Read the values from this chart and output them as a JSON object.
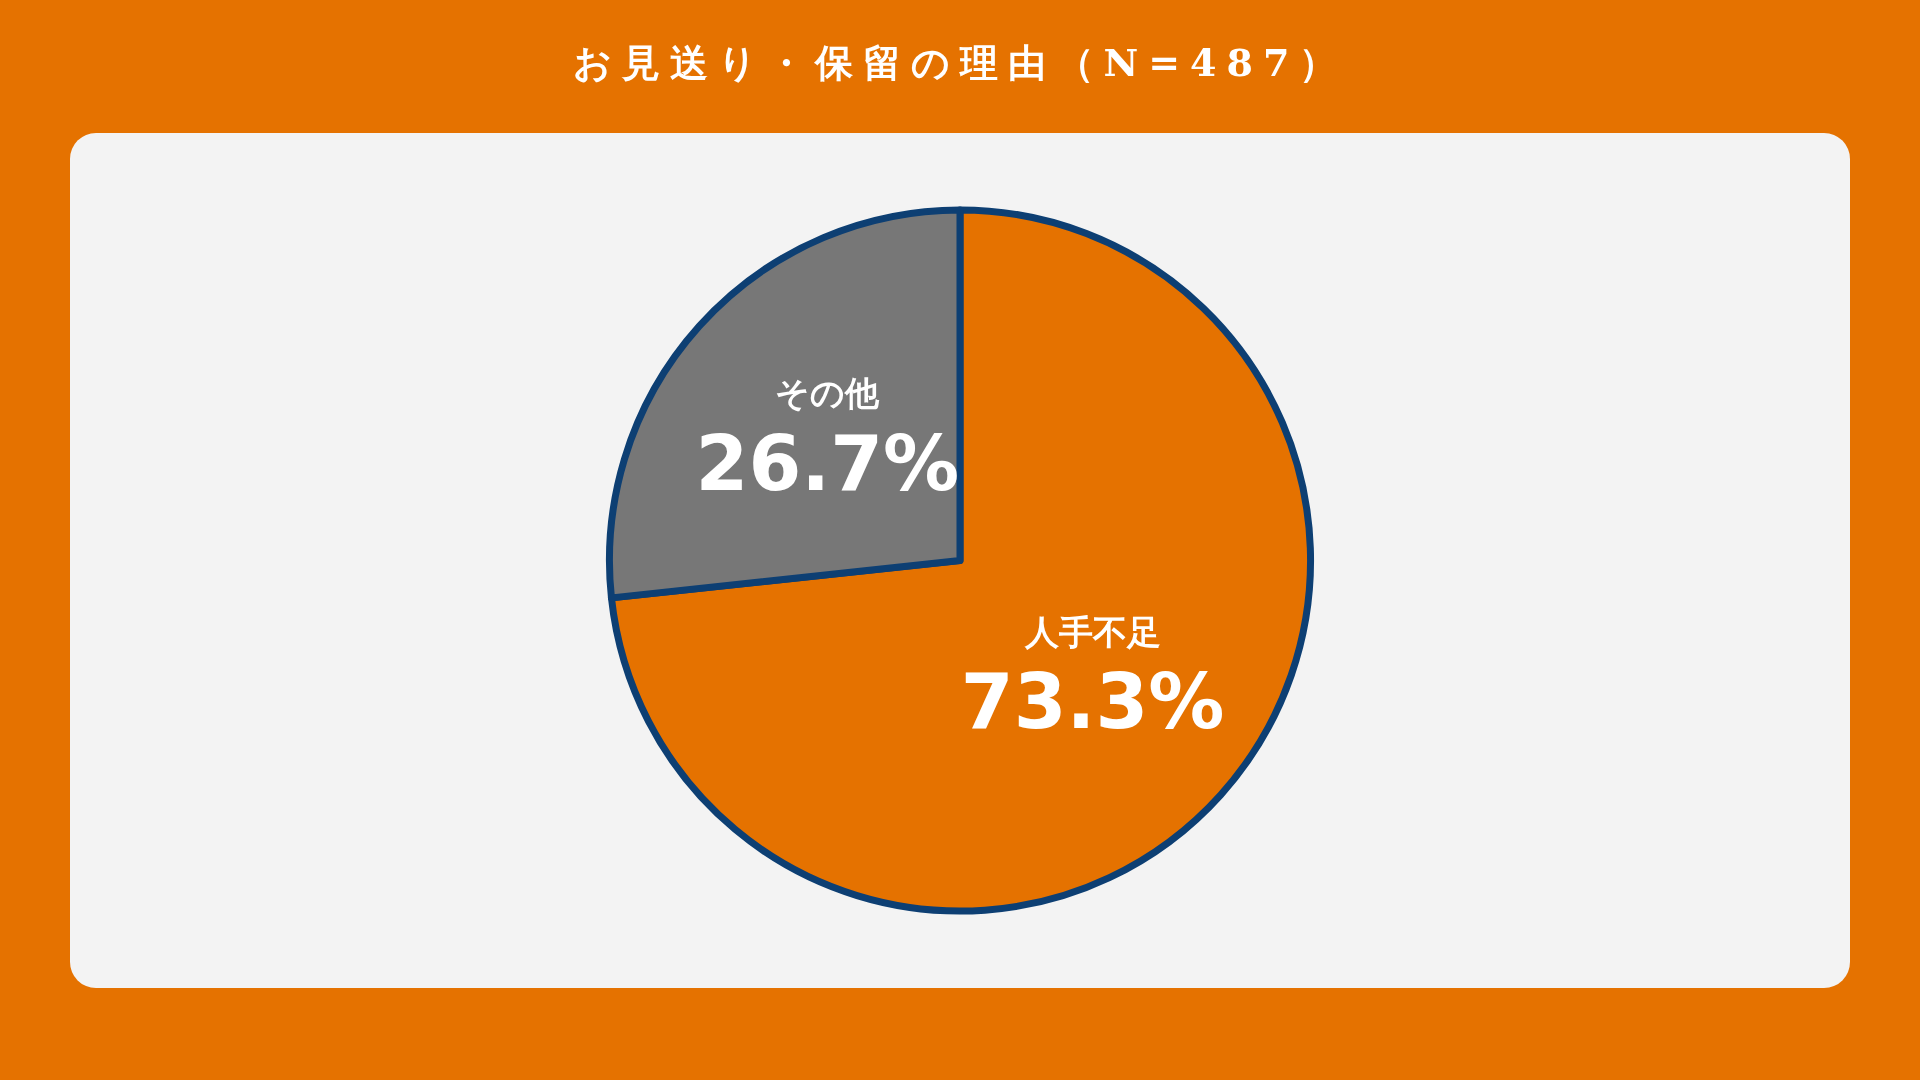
{
  "chart_data": {
    "type": "pie",
    "title": "お見送り・保留の理由（N=487）",
    "categories": [
      "人手不足",
      "その他"
    ],
    "values": [
      73.3,
      26.7
    ],
    "value_labels": [
      "73.3%",
      "26.7%"
    ],
    "colors": [
      "#e57200",
      "#777777"
    ],
    "legend": false
  }
}
